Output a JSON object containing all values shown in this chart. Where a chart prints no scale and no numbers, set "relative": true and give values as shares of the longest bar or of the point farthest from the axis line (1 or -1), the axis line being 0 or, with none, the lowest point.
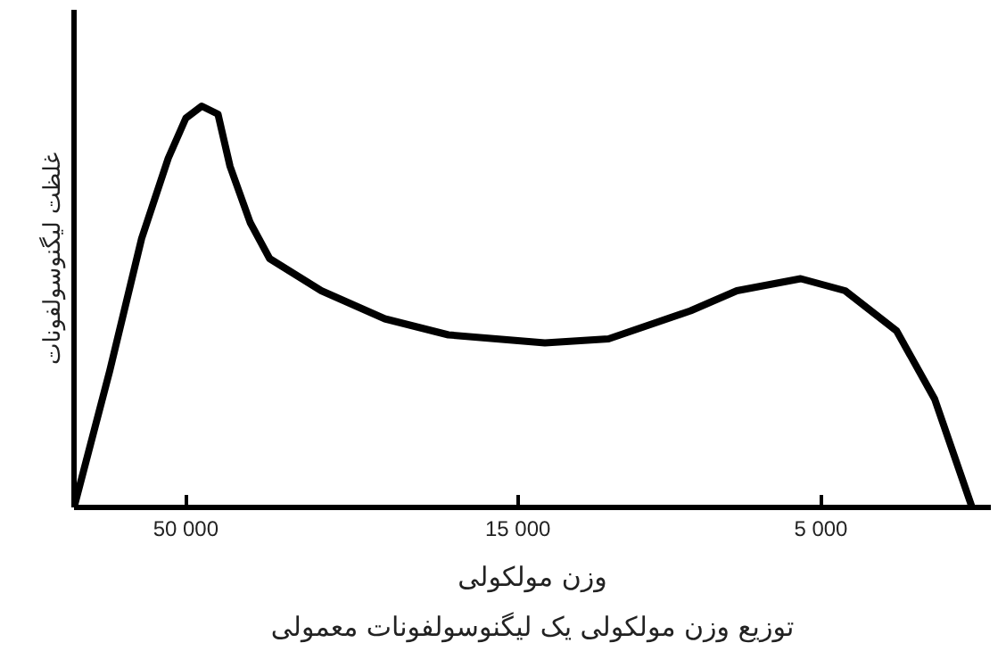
{
  "chart_data": {
    "type": "line",
    "relative": true,
    "log": "x",
    "xlabel": "وزن مولکولی",
    "ylabel": "غلظت لیگنوسولفونات",
    "annotations": [
      "توزیع وزن مولکولی یک لیگنوسولفونات معمولی"
    ],
    "xlim": [
      75000,
      2700
    ],
    "xticks": [
      {
        "value": 50000,
        "label": "50 000"
      },
      {
        "value": 15000,
        "label": "15 000"
      },
      {
        "value": 5000,
        "label": "5 000"
      }
    ],
    "grid": false,
    "tick_labels": "x",
    "series": [
      {
        "color": "#000000",
        "x": [
          75000,
          65900,
          58700,
          53300,
          50000,
          47200,
          44500,
          42600,
          39600,
          36900,
          30600,
          24300,
          19300,
          13600,
          10800,
          8020,
          6780,
          5380,
          4580,
          3800,
          3310,
          2890
        ],
        "values": [
          0,
          0.34,
          0.67,
          0.87,
          0.97,
          1,
          0.98,
          0.85,
          0.71,
          0.62,
          0.54,
          0.47,
          0.43,
          0.41,
          0.42,
          0.49,
          0.54,
          0.57,
          0.54,
          0.44,
          0.27,
          0
        ]
      }
    ]
  }
}
